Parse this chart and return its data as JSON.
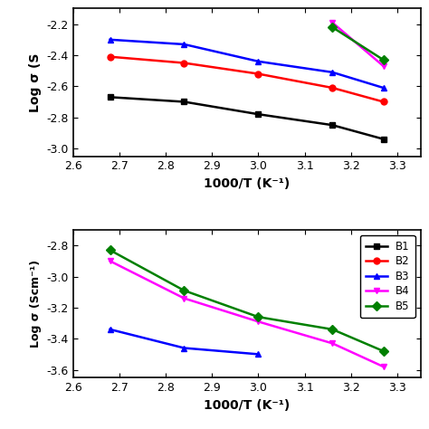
{
  "top_plot": {
    "x": [
      2.68,
      2.84,
      3.0,
      3.16,
      3.27
    ],
    "B1": [
      -2.67,
      -2.7,
      -2.78,
      -2.85,
      -2.94
    ],
    "B2": [
      -2.41,
      -2.45,
      -2.52,
      -2.61,
      -2.7
    ],
    "B3": [
      -2.3,
      -2.33,
      -2.44,
      -2.51,
      -2.61
    ],
    "B4": [
      null,
      null,
      null,
      -2.19,
      -2.47
    ],
    "B5": [
      null,
      null,
      null,
      -2.22,
      -2.43
    ],
    "xlabel": "1000/T (K⁻¹)",
    "ylabel": "Log σ (S",
    "xlim": [
      2.6,
      3.35
    ],
    "ylim": [
      -3.05,
      -2.1
    ],
    "xticks": [
      2.6,
      2.7,
      2.8,
      2.9,
      3.0,
      3.1,
      3.2,
      3.3
    ],
    "yticks": [
      -3.0,
      -2.8,
      -2.6,
      -2.4,
      -2.2
    ]
  },
  "bottom_plot": {
    "x": [
      2.68,
      2.84,
      3.0,
      3.16,
      3.27
    ],
    "B3": [
      -3.34,
      -3.46,
      -3.5,
      null,
      null
    ],
    "B4": [
      -2.9,
      -3.14,
      -3.29,
      -3.43,
      -3.58
    ],
    "B5": [
      -2.83,
      -3.09,
      -3.26,
      -3.34,
      -3.48
    ],
    "xlabel": "1000/T (K⁻¹)",
    "ylabel": "Log σ (Scm⁻¹)",
    "xlim": [
      2.6,
      3.35
    ],
    "ylim": [
      -3.65,
      -2.7
    ],
    "xticks": [
      2.6,
      2.7,
      2.8,
      2.9,
      3.0,
      3.1,
      3.2,
      3.3
    ],
    "yticks": [
      -3.6,
      -3.4,
      -3.2,
      -3.0,
      -2.8
    ]
  },
  "colors": {
    "B1": "#000000",
    "B2": "#ff0000",
    "B3": "#0000ff",
    "B4": "#ff00ff",
    "B5": "#008000"
  },
  "markers": {
    "B1": "s",
    "B2": "o",
    "B3": "^",
    "B4": "v",
    "B5": "D"
  }
}
